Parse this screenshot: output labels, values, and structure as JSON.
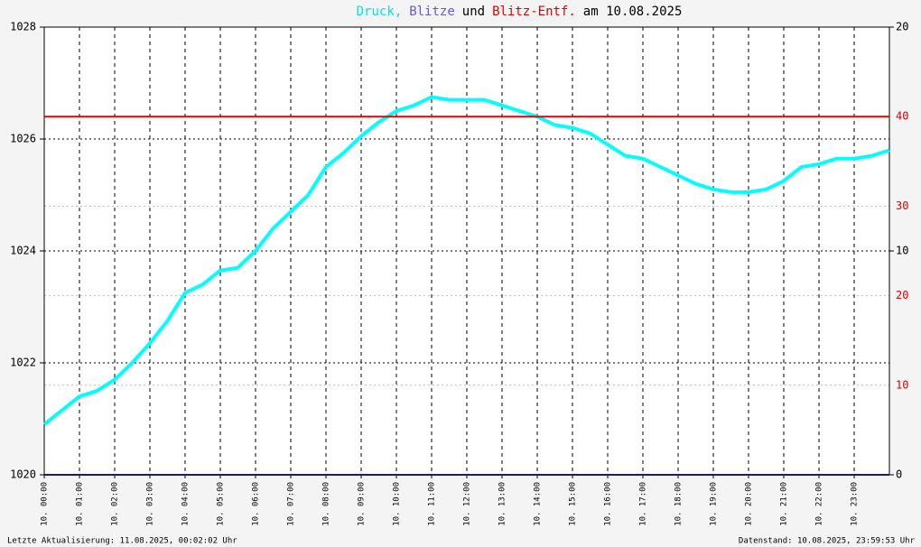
{
  "chart_data": {
    "type": "line",
    "title_parts": [
      {
        "text": "Druck,",
        "color": "#00e5e5"
      },
      {
        "text": "Blitze",
        "color": "#6a5acd"
      },
      {
        "text": "und",
        "color": "#000000"
      },
      {
        "text": "Blitz-Entf.",
        "color": "#e00000"
      },
      {
        "text": "am 10.08.2025",
        "color": "#000000"
      }
    ],
    "footer_left": "Letzte Aktualisierung: 11.08.2025, 00:02:02 Uhr",
    "footer_right": "Datenstand: 10.08.2025, 23:59:53 Uhr",
    "xlim": [
      0,
      24
    ],
    "xticks": [
      {
        "value": 0,
        "label": "10. 00:00"
      },
      {
        "value": 1,
        "label": "10. 01:00"
      },
      {
        "value": 2,
        "label": "10. 02:00"
      },
      {
        "value": 3,
        "label": "10. 03:00"
      },
      {
        "value": 4,
        "label": "10. 04:00"
      },
      {
        "value": 5,
        "label": "10. 05:00"
      },
      {
        "value": 6,
        "label": "10. 06:00"
      },
      {
        "value": 7,
        "label": "10. 07:00"
      },
      {
        "value": 8,
        "label": "10. 08:00"
      },
      {
        "value": 9,
        "label": "10. 09:00"
      },
      {
        "value": 10,
        "label": "10. 10:00"
      },
      {
        "value": 11,
        "label": "10. 11:00"
      },
      {
        "value": 12,
        "label": "10. 12:00"
      },
      {
        "value": 13,
        "label": "10. 13:00"
      },
      {
        "value": 14,
        "label": "10. 14:00"
      },
      {
        "value": 15,
        "label": "10. 15:00"
      },
      {
        "value": 16,
        "label": "10. 16:00"
      },
      {
        "value": 17,
        "label": "10. 17:00"
      },
      {
        "value": 18,
        "label": "10. 18:00"
      },
      {
        "value": 19,
        "label": "10. 19:00"
      },
      {
        "value": 20,
        "label": "10. 20:00"
      },
      {
        "value": 21,
        "label": "10. 21:00"
      },
      {
        "value": 22,
        "label": "10. 22:00"
      },
      {
        "value": 23,
        "label": "10. 23:00"
      }
    ],
    "ylim": [
      1020,
      1028
    ],
    "yticks": [
      1020,
      1022,
      1024,
      1026,
      1028
    ],
    "y2lim": [
      0,
      20
    ],
    "y2ticks": [
      0,
      10,
      20
    ],
    "y3lim": [
      0,
      50
    ],
    "y3ticks": [
      10,
      20,
      30,
      40
    ],
    "y3color": "#e00000",
    "grid": true,
    "series": [
      {
        "name": "Druck",
        "color": "#00ffff",
        "axis": "y",
        "x": [
          0,
          0.5,
          1,
          1.5,
          2,
          2.5,
          3,
          3.5,
          4,
          4.5,
          5,
          5.5,
          6,
          6.5,
          7,
          7.5,
          8,
          8.5,
          9,
          9.5,
          10,
          10.5,
          11,
          11.5,
          12,
          12.5,
          13,
          13.5,
          14,
          14.5,
          15,
          15.5,
          16,
          16.5,
          17,
          17.5,
          18,
          18.5,
          19,
          19.5,
          20,
          20.5,
          21,
          21.5,
          22,
          22.5,
          23,
          23.5,
          24
        ],
        "values": [
          1020.9,
          1021.15,
          1021.4,
          1021.5,
          1021.7,
          1022.0,
          1022.35,
          1022.75,
          1023.25,
          1023.4,
          1023.65,
          1023.7,
          1024.0,
          1024.4,
          1024.7,
          1025.0,
          1025.5,
          1025.75,
          1026.05,
          1026.3,
          1026.5,
          1026.6,
          1026.75,
          1026.7,
          1026.7,
          1026.7,
          1026.6,
          1026.5,
          1026.4,
          1026.25,
          1026.2,
          1026.1,
          1025.9,
          1025.7,
          1025.65,
          1025.5,
          1025.35,
          1025.2,
          1025.1,
          1025.05,
          1025.05,
          1025.1,
          1025.25,
          1025.5,
          1025.55,
          1025.65,
          1025.65,
          1025.7,
          1025.8
        ]
      },
      {
        "name": "Blitze",
        "color": "#1a1a7a",
        "axis": "y2",
        "x": [
          0,
          24
        ],
        "values": [
          0,
          0
        ]
      },
      {
        "name": "Blitz-Entf.",
        "color": "#e00000",
        "axis": "y3",
        "x": [
          0,
          24
        ],
        "values": [
          40,
          40
        ]
      }
    ]
  }
}
